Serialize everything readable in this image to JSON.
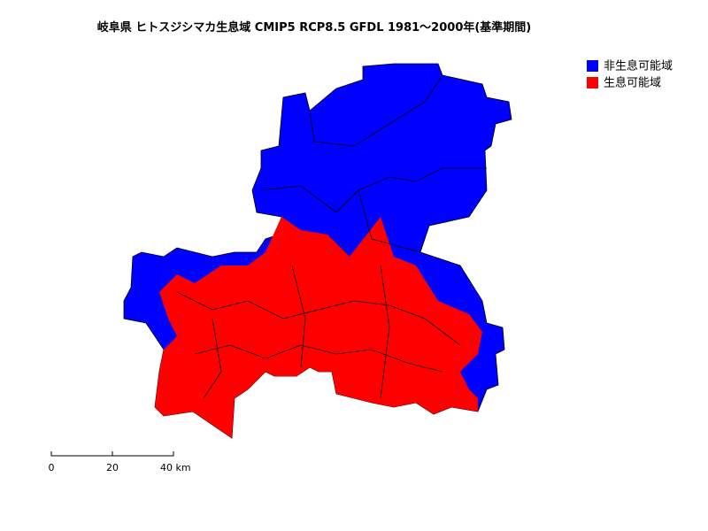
{
  "title": "岐阜県 ヒトスジシマカ生息域 CMIP5 RCP8.5 GFDL 1981～2000年(基準期間)",
  "legend": {
    "items": [
      {
        "label": "非生息可能域",
        "color": "#0000ff"
      },
      {
        "label": "生息可能域",
        "color": "#ff0000"
      }
    ]
  },
  "scale_bar": {
    "labels": [
      "0",
      "20",
      "40 km"
    ]
  }
}
